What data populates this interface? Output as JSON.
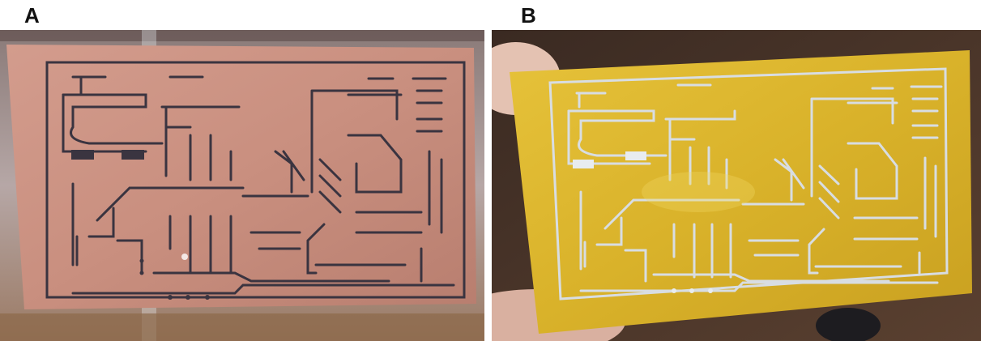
{
  "panels": [
    {
      "label": "A",
      "board_finish": "etched copper",
      "board_color": "#c98f7f",
      "trace_color": "#3a3440"
    },
    {
      "label": "B",
      "board_finish": "tin-plated",
      "board_color": "#d9b22a",
      "trace_color": "#d8dde2"
    }
  ]
}
